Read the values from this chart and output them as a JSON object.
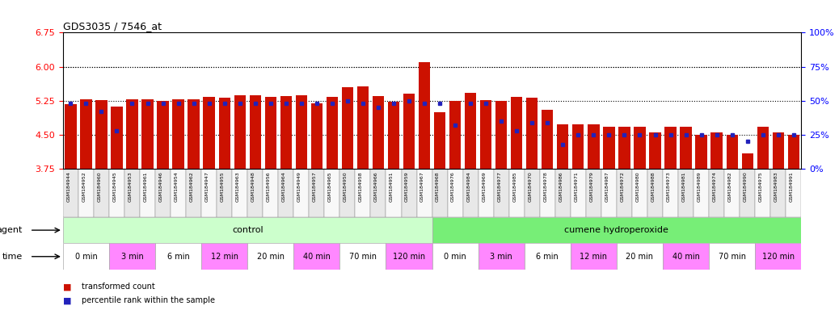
{
  "title": "GDS3035 / 7546_at",
  "ylim_left": [
    3.75,
    6.75
  ],
  "ylim_right": [
    0,
    100
  ],
  "yticks_left": [
    3.75,
    4.5,
    5.25,
    6.0,
    6.75
  ],
  "yticks_right": [
    0,
    25,
    50,
    75,
    100
  ],
  "bar_color": "#cc1100",
  "dot_color": "#2222bb",
  "samples": [
    "GSM184944",
    "GSM184952",
    "GSM184960",
    "GSM184945",
    "GSM184953",
    "GSM184961",
    "GSM184946",
    "GSM184954",
    "GSM184962",
    "GSM184947",
    "GSM184955",
    "GSM184963",
    "GSM184948",
    "GSM184956",
    "GSM184964",
    "GSM184949",
    "GSM184957",
    "GSM184965",
    "GSM184950",
    "GSM184958",
    "GSM184966",
    "GSM184951",
    "GSM184959",
    "GSM184967",
    "GSM184968",
    "GSM184976",
    "GSM184984",
    "GSM184969",
    "GSM184977",
    "GSM184985",
    "GSM184970",
    "GSM184978",
    "GSM184986",
    "GSM184971",
    "GSM184979",
    "GSM184987",
    "GSM184972",
    "GSM184980",
    "GSM184988",
    "GSM184973",
    "GSM184981",
    "GSM184989",
    "GSM184974",
    "GSM184982",
    "GSM184990",
    "GSM184975",
    "GSM184983",
    "GSM184991"
  ],
  "bar_values": [
    5.18,
    5.28,
    5.27,
    5.13,
    5.29,
    5.28,
    5.25,
    5.28,
    5.28,
    5.34,
    5.32,
    5.37,
    5.37,
    5.34,
    5.35,
    5.37,
    5.2,
    5.34,
    5.55,
    5.57,
    5.36,
    5.22,
    5.4,
    6.1,
    4.99,
    5.24,
    5.43,
    5.27,
    5.25,
    5.34,
    5.32,
    5.05,
    4.73,
    4.73,
    4.73,
    4.68,
    4.68,
    4.68,
    4.55,
    4.68,
    4.68,
    4.5,
    4.55,
    4.5,
    4.1,
    4.68,
    4.55,
    4.5
  ],
  "dot_values_pct": [
    48,
    48,
    42,
    28,
    48,
    48,
    48,
    48,
    48,
    48,
    48,
    48,
    48,
    48,
    48,
    48,
    48,
    48,
    50,
    48,
    45,
    48,
    50,
    48,
    48,
    32,
    48,
    48,
    35,
    28,
    34,
    34,
    18,
    25,
    25,
    25,
    25,
    25,
    25,
    25,
    25,
    25,
    25,
    25,
    20,
    25,
    25,
    25
  ],
  "agent_groups": [
    {
      "label": "control",
      "start": 0,
      "end": 24,
      "color": "#ccffcc"
    },
    {
      "label": "cumene hydroperoxide",
      "start": 24,
      "end": 48,
      "color": "#77ee77"
    }
  ],
  "time_groups": [
    {
      "label": "0 min",
      "start": 0,
      "end": 3,
      "color": "#ffffff"
    },
    {
      "label": "3 min",
      "start": 3,
      "end": 6,
      "color": "#ff88ff"
    },
    {
      "label": "6 min",
      "start": 6,
      "end": 9,
      "color": "#ffffff"
    },
    {
      "label": "12 min",
      "start": 9,
      "end": 12,
      "color": "#ff88ff"
    },
    {
      "label": "20 min",
      "start": 12,
      "end": 15,
      "color": "#ffffff"
    },
    {
      "label": "40 min",
      "start": 15,
      "end": 18,
      "color": "#ff88ff"
    },
    {
      "label": "70 min",
      "start": 18,
      "end": 21,
      "color": "#ffffff"
    },
    {
      "label": "120 min",
      "start": 21,
      "end": 24,
      "color": "#ff88ff"
    },
    {
      "label": "0 min",
      "start": 24,
      "end": 27,
      "color": "#ffffff"
    },
    {
      "label": "3 min",
      "start": 27,
      "end": 30,
      "color": "#ff88ff"
    },
    {
      "label": "6 min",
      "start": 30,
      "end": 33,
      "color": "#ffffff"
    },
    {
      "label": "12 min",
      "start": 33,
      "end": 36,
      "color": "#ff88ff"
    },
    {
      "label": "20 min",
      "start": 36,
      "end": 39,
      "color": "#ffffff"
    },
    {
      "label": "40 min",
      "start": 39,
      "end": 42,
      "color": "#ff88ff"
    },
    {
      "label": "70 min",
      "start": 42,
      "end": 45,
      "color": "#ffffff"
    },
    {
      "label": "120 min",
      "start": 45,
      "end": 48,
      "color": "#ff88ff"
    }
  ],
  "grid_lines": [
    4.5,
    5.25,
    6.0
  ],
  "background_color": "#ffffff",
  "xticklabel_bg_even": "#e8e8e8",
  "xticklabel_bg_odd": "#f8f8f8"
}
